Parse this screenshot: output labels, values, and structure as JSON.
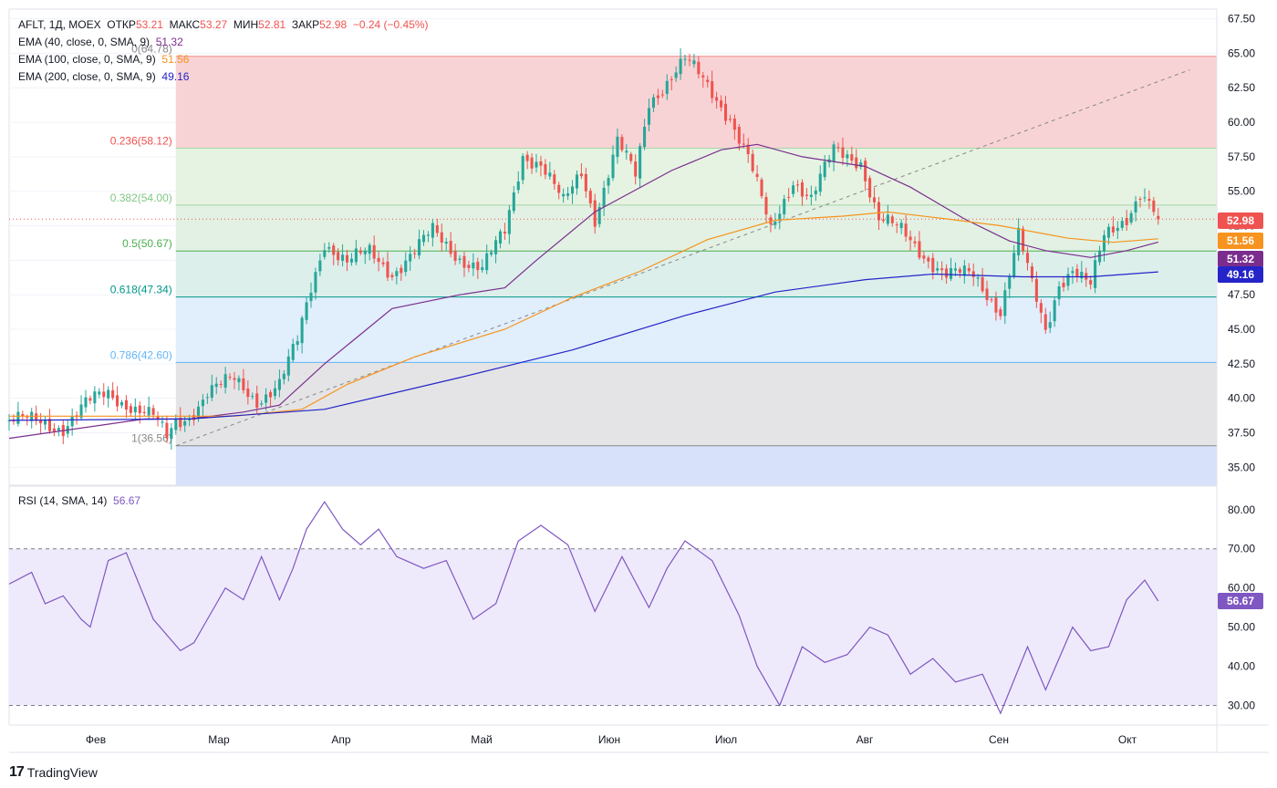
{
  "header": {
    "symbol": "AFLT, 1Д, MOEX",
    "open_label": "ОТКР",
    "open": "53.21",
    "high_label": "МАКС",
    "high": "53.27",
    "low_label": "МИН",
    "low": "52.81",
    "close_label": "ЗАКР",
    "close": "52.98",
    "change": "−0.24 (−0.45%)"
  },
  "indicators": [
    {
      "label": "EMA (40, close, 0, SMA, 9)",
      "value": "51.32",
      "color": "#7b2d8e"
    },
    {
      "label": "EMA (100, close, 0, SMA, 9)",
      "value": "51.56",
      "color": "#f7931e"
    },
    {
      "label": "EMA (200, close, 0, SMA, 9)",
      "value": "49.16",
      "color": "#2424c8"
    }
  ],
  "rsi_legend": {
    "label": "RSI (14, SMA, 14)",
    "value": "56.67",
    "color": "#7e57c2"
  },
  "footer": {
    "brand": "TradingView",
    "logo": "17"
  },
  "colors": {
    "up": "#26a69a",
    "down": "#ef5350"
  },
  "chart_data": [
    {
      "type": "candlestick",
      "title": "AFLT, 1Д, MOEX",
      "x_labels": [
        "Фев",
        "Мар",
        "Апр",
        "Май",
        "Июн",
        "Июл",
        "Авг",
        "Сен",
        "Окт"
      ],
      "y_ticks": [
        "67.50",
        "65.00",
        "62.50",
        "60.00",
        "57.50",
        "55.00",
        "52.50",
        "50.00",
        "47.50",
        "45.00",
        "42.50",
        "40.00",
        "37.50",
        "35.00"
      ],
      "ylim": [
        33.7,
        68.2
      ],
      "price_path": [
        [
          0,
          38.4
        ],
        [
          8,
          38.2
        ],
        [
          12,
          38.0
        ],
        [
          17,
          39.5
        ],
        [
          22,
          40.3
        ],
        [
          27,
          39.6
        ],
        [
          32,
          38.6
        ],
        [
          35,
          37.0
        ],
        [
          37,
          38.2
        ],
        [
          40,
          38.8
        ],
        [
          44,
          40.5
        ],
        [
          50,
          41.2
        ],
        [
          55,
          40.0
        ],
        [
          60,
          41.0
        ],
        [
          64,
          44.0
        ],
        [
          67,
          48.0
        ],
        [
          70,
          51.5
        ],
        [
          75,
          49.8
        ],
        [
          80,
          50.5
        ],
        [
          85,
          49.2
        ],
        [
          90,
          50.6
        ],
        [
          94,
          52.0
        ],
        [
          100,
          50.3
        ],
        [
          105,
          49.3
        ],
        [
          110,
          52.0
        ],
        [
          114,
          57.8
        ],
        [
          118,
          57.0
        ],
        [
          123,
          54.0
        ],
        [
          127,
          56.5
        ],
        [
          130,
          53.2
        ],
        [
          135,
          58.5
        ],
        [
          139,
          56.0
        ],
        [
          142,
          61.5
        ],
        [
          147,
          63.5
        ],
        [
          150,
          64.5
        ],
        [
          155,
          62.5
        ],
        [
          160,
          60.5
        ],
        [
          164,
          57.5
        ],
        [
          169,
          52.0
        ],
        [
          174,
          56.0
        ],
        [
          178,
          54.5
        ],
        [
          183,
          57.8
        ],
        [
          189,
          57.3
        ],
        [
          193,
          53.0
        ],
        [
          198,
          52.0
        ],
        [
          203,
          50.5
        ],
        [
          208,
          49.0
        ],
        [
          214,
          48.8
        ],
        [
          220,
          46.5
        ],
        [
          224,
          51.8
        ],
        [
          227,
          48.0
        ],
        [
          230,
          44.8
        ],
        [
          233,
          48.5
        ],
        [
          236,
          49.5
        ],
        [
          240,
          48.0
        ],
        [
          243,
          51.6
        ],
        [
          248,
          53.3
        ],
        [
          251,
          55.0
        ],
        [
          255,
          52.98
        ]
      ],
      "series": [
        {
          "name": "EMA (40, close, 0, SMA, 9)",
          "value": 51.32,
          "points": [
            [
              0,
              37.1
            ],
            [
              30,
              38.5
            ],
            [
              40,
              38.5
            ],
            [
              52,
              39.0
            ],
            [
              60,
              39.5
            ],
            [
              70,
              42.5
            ],
            [
              85,
              46.5
            ],
            [
              100,
              47.5
            ],
            [
              110,
              48.0
            ],
            [
              117,
              50.0
            ],
            [
              130,
              53.5
            ],
            [
              147,
              56.5
            ],
            [
              158,
              58.0
            ],
            [
              166,
              58.4
            ],
            [
              176,
              57.5
            ],
            [
              190,
              56.8
            ],
            [
              200,
              55.3
            ],
            [
              212,
              53.0
            ],
            [
              222,
              51.4
            ],
            [
              230,
              50.7
            ],
            [
              240,
              50.2
            ],
            [
              248,
              50.7
            ],
            [
              255,
              51.32
            ]
          ]
        },
        {
          "name": "EMA (100, close, 0, SMA, 9)",
          "value": 51.56,
          "points": [
            [
              0,
              38.7
            ],
            [
              30,
              38.7
            ],
            [
              50,
              38.7
            ],
            [
              65,
              39.2
            ],
            [
              75,
              41.0
            ],
            [
              90,
              43.0
            ],
            [
              110,
              45.0
            ],
            [
              125,
              47.3
            ],
            [
              140,
              49.2
            ],
            [
              155,
              51.5
            ],
            [
              170,
              52.9
            ],
            [
              185,
              53.2
            ],
            [
              195,
              53.5
            ],
            [
              208,
              53.0
            ],
            [
              220,
              52.5
            ],
            [
              235,
              51.6
            ],
            [
              245,
              51.3
            ],
            [
              255,
              51.56
            ]
          ]
        },
        {
          "name": "EMA (200, close, 0, SMA, 9)",
          "value": 49.16,
          "points": [
            [
              0,
              38.4
            ],
            [
              40,
              38.5
            ],
            [
              70,
              39.2
            ],
            [
              100,
              41.5
            ],
            [
              125,
              43.5
            ],
            [
              150,
              46.0
            ],
            [
              170,
              47.7
            ],
            [
              190,
              48.6
            ],
            [
              205,
              49.0
            ],
            [
              225,
              48.8
            ],
            [
              240,
              48.8
            ],
            [
              255,
              49.16
            ]
          ]
        }
      ],
      "fibonacci": [
        {
          "label": "0(64.78)",
          "level": 64.78
        },
        {
          "label": "0.236(58.12)",
          "level": 58.12
        },
        {
          "label": "0.382(54.00)",
          "level": 54.0
        },
        {
          "label": "0.5(50.67)",
          "level": 50.67
        },
        {
          "label": "0.618(47.34)",
          "level": 47.34
        },
        {
          "label": "0.786(42.60)",
          "level": 42.6
        },
        {
          "label": "1(36.56)",
          "level": 36.56
        }
      ],
      "fib_colors": [
        "#f08c8c",
        "#a5d6a7",
        "#a5d6a7",
        "#4caf50",
        "#009688",
        "#64b5f6",
        "#888888",
        "#7986cb"
      ],
      "fib_label_colors": [
        "#888888",
        "#ef5350",
        "#81c784",
        "#4caf50",
        "#009688",
        "#64b5f6",
        "#888888"
      ],
      "trendline": [
        [
          37,
          36.56
        ],
        [
          262,
          63.8
        ]
      ],
      "last_price_tags": [
        {
          "value": "52.98",
          "color": "#ef5350"
        },
        {
          "value": "51.56",
          "color": "#f7931e"
        },
        {
          "value": "51.32",
          "color": "#7b2d8e"
        },
        {
          "value": "49.16",
          "color": "#2424c8"
        }
      ]
    },
    {
      "type": "line",
      "title": "RSI (14, SMA, 14)",
      "y_ticks": [
        "80.00",
        "70.00",
        "60.00",
        "50.00",
        "40.00",
        "30.00"
      ],
      "ylim": [
        25,
        86
      ],
      "bands": [
        30,
        70
      ],
      "values": [
        [
          0,
          61
        ],
        [
          5,
          64
        ],
        [
          8,
          56
        ],
        [
          12,
          58
        ],
        [
          16,
          52
        ],
        [
          18,
          50
        ],
        [
          22,
          67
        ],
        [
          26,
          69
        ],
        [
          32,
          52
        ],
        [
          38,
          44
        ],
        [
          41,
          46
        ],
        [
          44,
          52
        ],
        [
          48,
          60
        ],
        [
          52,
          57
        ],
        [
          56,
          68
        ],
        [
          60,
          57
        ],
        [
          63,
          65
        ],
        [
          66,
          75
        ],
        [
          70,
          82
        ],
        [
          74,
          75
        ],
        [
          78,
          71
        ],
        [
          82,
          75
        ],
        [
          86,
          68
        ],
        [
          92,
          65
        ],
        [
          97,
          67
        ],
        [
          103,
          52
        ],
        [
          108,
          56
        ],
        [
          113,
          72
        ],
        [
          118,
          76
        ],
        [
          124,
          71
        ],
        [
          130,
          54
        ],
        [
          136,
          68
        ],
        [
          142,
          55
        ],
        [
          146,
          65
        ],
        [
          150,
          72
        ],
        [
          156,
          67
        ],
        [
          162,
          53
        ],
        [
          166,
          40
        ],
        [
          171,
          30
        ],
        [
          176,
          45
        ],
        [
          181,
          41
        ],
        [
          186,
          43
        ],
        [
          191,
          50
        ],
        [
          195,
          48
        ],
        [
          200,
          38
        ],
        [
          205,
          42
        ],
        [
          210,
          36
        ],
        [
          216,
          38
        ],
        [
          220,
          28
        ],
        [
          226,
          45
        ],
        [
          230,
          34
        ],
        [
          236,
          50
        ],
        [
          240,
          44
        ],
        [
          244,
          45
        ],
        [
          248,
          57
        ],
        [
          252,
          62
        ],
        [
          255,
          56.67
        ]
      ]
    }
  ]
}
